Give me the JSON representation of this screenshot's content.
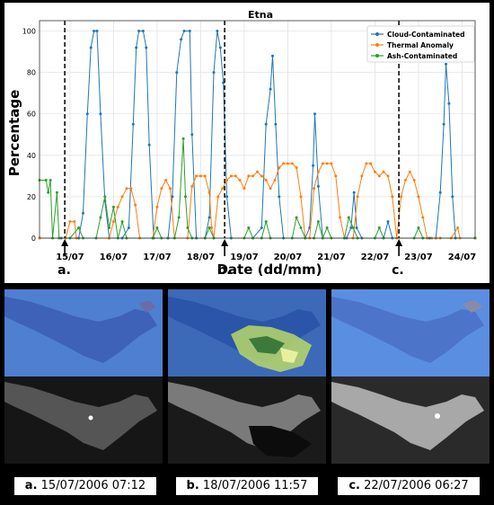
{
  "chart_data": {
    "type": "line",
    "title": "Etna",
    "xlabel": "Date (dd/mm)",
    "ylabel": "Percentage",
    "x_tick_labels": [
      "15/07",
      "16/07",
      "17/07",
      "18/07",
      "19/07",
      "20/07",
      "21/07",
      "22/07",
      "23/07",
      "24/07"
    ],
    "x_range_days": [
      14.3,
      24.3
    ],
    "ylim": [
      0,
      105
    ],
    "y_ticks": [
      0,
      20,
      40,
      60,
      80,
      100
    ],
    "grid": true,
    "legend_position": "top-right",
    "series": [
      {
        "name": "Cloud-Contaminated",
        "color": "#1f77b4",
        "marker": "dot",
        "points": [
          [
            14.3,
            0
          ],
          [
            14.8,
            0
          ],
          [
            15.2,
            0
          ],
          [
            15.3,
            12
          ],
          [
            15.4,
            60
          ],
          [
            15.48,
            92
          ],
          [
            15.55,
            100
          ],
          [
            15.62,
            100
          ],
          [
            15.7,
            60
          ],
          [
            15.8,
            18
          ],
          [
            15.9,
            0
          ],
          [
            16.2,
            0
          ],
          [
            16.35,
            5
          ],
          [
            16.45,
            55
          ],
          [
            16.52,
            92
          ],
          [
            16.58,
            100
          ],
          [
            16.68,
            100
          ],
          [
            16.75,
            92
          ],
          [
            16.82,
            45
          ],
          [
            16.92,
            0
          ],
          [
            17.25,
            0
          ],
          [
            17.35,
            20
          ],
          [
            17.45,
            80
          ],
          [
            17.55,
            96
          ],
          [
            17.62,
            100
          ],
          [
            17.75,
            100
          ],
          [
            17.8,
            50
          ],
          [
            17.9,
            0
          ],
          [
            18.1,
            0
          ],
          [
            18.2,
            10
          ],
          [
            18.3,
            80
          ],
          [
            18.38,
            100
          ],
          [
            18.45,
            92
          ],
          [
            18.52,
            75
          ],
          [
            18.6,
            20
          ],
          [
            18.7,
            0
          ],
          [
            19.2,
            0
          ],
          [
            19.4,
            5
          ],
          [
            19.5,
            55
          ],
          [
            19.6,
            72
          ],
          [
            19.65,
            88
          ],
          [
            19.72,
            55
          ],
          [
            19.8,
            20
          ],
          [
            19.9,
            0
          ],
          [
            20.4,
            0
          ],
          [
            20.5,
            5
          ],
          [
            20.58,
            35
          ],
          [
            20.62,
            60
          ],
          [
            20.7,
            25
          ],
          [
            20.8,
            0
          ],
          [
            21.35,
            0
          ],
          [
            21.45,
            5
          ],
          [
            21.52,
            22
          ],
          [
            21.58,
            5
          ],
          [
            21.7,
            0
          ],
          [
            22.2,
            0
          ],
          [
            22.3,
            8
          ],
          [
            22.4,
            0
          ],
          [
            23.25,
            0
          ],
          [
            23.4,
            0
          ],
          [
            23.5,
            22
          ],
          [
            23.58,
            55
          ],
          [
            23.63,
            84
          ],
          [
            23.7,
            65
          ],
          [
            23.78,
            20
          ],
          [
            23.85,
            0
          ],
          [
            24.3,
            0
          ]
        ]
      },
      {
        "name": "Thermal Anomaly",
        "color": "#ff7f0e",
        "marker": "dot",
        "points": [
          [
            14.3,
            0
          ],
          [
            14.9,
            0
          ],
          [
            15.0,
            8
          ],
          [
            15.1,
            8
          ],
          [
            15.15,
            0
          ],
          [
            15.9,
            0
          ],
          [
            16.0,
            8
          ],
          [
            16.1,
            15
          ],
          [
            16.2,
            20
          ],
          [
            16.3,
            24
          ],
          [
            16.4,
            24
          ],
          [
            16.5,
            16
          ],
          [
            16.6,
            0
          ],
          [
            16.9,
            0
          ],
          [
            17.0,
            15
          ],
          [
            17.1,
            24
          ],
          [
            17.2,
            28
          ],
          [
            17.3,
            24
          ],
          [
            17.4,
            0
          ],
          [
            17.7,
            0
          ],
          [
            17.8,
            25
          ],
          [
            17.9,
            30
          ],
          [
            18.0,
            30
          ],
          [
            18.1,
            30
          ],
          [
            18.2,
            22
          ],
          [
            18.25,
            5
          ],
          [
            18.3,
            0
          ],
          [
            18.4,
            20
          ],
          [
            18.5,
            24
          ],
          [
            18.6,
            28
          ],
          [
            18.7,
            30
          ],
          [
            18.8,
            30
          ],
          [
            18.9,
            28
          ],
          [
            19.0,
            24
          ],
          [
            19.1,
            30
          ],
          [
            19.2,
            30
          ],
          [
            19.3,
            32
          ],
          [
            19.4,
            30
          ],
          [
            19.5,
            28
          ],
          [
            19.6,
            24
          ],
          [
            19.7,
            28
          ],
          [
            19.8,
            34
          ],
          [
            19.9,
            36
          ],
          [
            20.0,
            36
          ],
          [
            20.1,
            36
          ],
          [
            20.2,
            34
          ],
          [
            20.3,
            20
          ],
          [
            20.4,
            0
          ],
          [
            20.5,
            0
          ],
          [
            20.6,
            24
          ],
          [
            20.7,
            32
          ],
          [
            20.8,
            36
          ],
          [
            20.9,
            36
          ],
          [
            21.0,
            36
          ],
          [
            21.1,
            30
          ],
          [
            21.2,
            10
          ],
          [
            21.3,
            0
          ],
          [
            21.5,
            0
          ],
          [
            21.6,
            20
          ],
          [
            21.7,
            30
          ],
          [
            21.8,
            36
          ],
          [
            21.9,
            36
          ],
          [
            22.0,
            32
          ],
          [
            22.1,
            30
          ],
          [
            22.2,
            32
          ],
          [
            22.3,
            30
          ],
          [
            22.4,
            20
          ],
          [
            22.5,
            0
          ],
          [
            22.6,
            20
          ],
          [
            22.7,
            28
          ],
          [
            22.8,
            32
          ],
          [
            22.9,
            28
          ],
          [
            23.0,
            20
          ],
          [
            23.1,
            10
          ],
          [
            23.2,
            0
          ],
          [
            23.3,
            0
          ],
          [
            23.4,
            0
          ],
          [
            23.5,
            0
          ],
          [
            23.75,
            0
          ],
          [
            23.9,
            5
          ],
          [
            23.95,
            0
          ],
          [
            24.3,
            0
          ]
        ]
      },
      {
        "name": "Ash-Contaminated",
        "color": "#2ca02c",
        "marker": "dot",
        "points": [
          [
            14.3,
            28
          ],
          [
            14.45,
            28
          ],
          [
            14.5,
            22
          ],
          [
            14.55,
            28
          ],
          [
            14.6,
            0
          ],
          [
            14.7,
            22
          ],
          [
            14.75,
            0
          ],
          [
            15.0,
            0
          ],
          [
            15.2,
            5
          ],
          [
            15.3,
            0
          ],
          [
            15.6,
            0
          ],
          [
            15.7,
            10
          ],
          [
            15.8,
            20
          ],
          [
            15.9,
            5
          ],
          [
            16.0,
            15
          ],
          [
            16.1,
            0
          ],
          [
            16.2,
            8
          ],
          [
            16.3,
            0
          ],
          [
            16.9,
            0
          ],
          [
            17.0,
            5
          ],
          [
            17.1,
            0
          ],
          [
            17.4,
            0
          ],
          [
            17.5,
            10
          ],
          [
            17.6,
            48
          ],
          [
            17.65,
            20
          ],
          [
            17.7,
            5
          ],
          [
            17.8,
            0
          ],
          [
            18.1,
            0
          ],
          [
            18.2,
            5
          ],
          [
            18.3,
            0
          ],
          [
            19.0,
            0
          ],
          [
            19.1,
            5
          ],
          [
            19.2,
            0
          ],
          [
            19.4,
            0
          ],
          [
            19.5,
            8
          ],
          [
            19.6,
            0
          ],
          [
            20.1,
            0
          ],
          [
            20.2,
            10
          ],
          [
            20.3,
            5
          ],
          [
            20.4,
            0
          ],
          [
            20.6,
            0
          ],
          [
            20.7,
            8
          ],
          [
            20.8,
            0
          ],
          [
            20.9,
            5
          ],
          [
            21.0,
            0
          ],
          [
            21.3,
            0
          ],
          [
            21.4,
            10
          ],
          [
            21.5,
            5
          ],
          [
            21.6,
            0
          ],
          [
            22.0,
            0
          ],
          [
            22.1,
            5
          ],
          [
            22.2,
            0
          ],
          [
            22.9,
            0
          ],
          [
            23.0,
            5
          ],
          [
            23.1,
            0
          ],
          [
            24.3,
            0
          ]
        ]
      }
    ],
    "event_lines": [
      {
        "x": 14.88,
        "label": "a."
      },
      {
        "x": 18.55,
        "label": "b."
      },
      {
        "x": 22.55,
        "label": "c."
      }
    ]
  },
  "captions": [
    {
      "letter": "a.",
      "text": "15/07/2006 07:12"
    },
    {
      "letter": "b.",
      "text": "18/07/2006 11:57"
    },
    {
      "letter": "c.",
      "text": "22/07/2006 06:27"
    }
  ]
}
